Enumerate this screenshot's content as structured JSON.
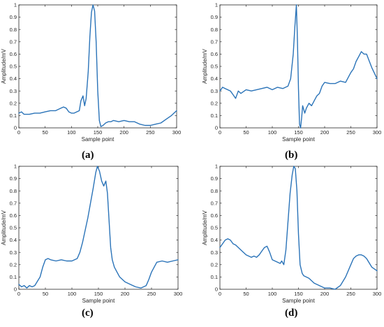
{
  "chart_data": [
    {
      "type": "line",
      "panel_label": "(a)",
      "xlabel": "Sample point",
      "ylabel": "Amplitude/mV",
      "xlim": [
        0,
        300
      ],
      "ylim": [
        0,
        1
      ],
      "xticks": [
        0,
        50,
        100,
        150,
        200,
        250,
        300
      ],
      "yticks": [
        0,
        0.1,
        0.2,
        0.3,
        0.4,
        0.5,
        0.6,
        0.7,
        0.8,
        0.9,
        1
      ],
      "grid": false,
      "line_color": "#2a73b8",
      "x": [
        0,
        5,
        10,
        20,
        30,
        40,
        50,
        60,
        70,
        80,
        85,
        90,
        95,
        100,
        105,
        110,
        115,
        118,
        122,
        125,
        128,
        132,
        135,
        138,
        141,
        144,
        147,
        150,
        153,
        156,
        160,
        165,
        170,
        175,
        180,
        190,
        200,
        210,
        220,
        230,
        240,
        250,
        260,
        270,
        280,
        290,
        295,
        300
      ],
      "y": [
        0.12,
        0.13,
        0.11,
        0.11,
        0.12,
        0.12,
        0.13,
        0.14,
        0.14,
        0.16,
        0.17,
        0.16,
        0.13,
        0.12,
        0.12,
        0.13,
        0.14,
        0.22,
        0.26,
        0.18,
        0.24,
        0.46,
        0.74,
        0.94,
        1.0,
        0.95,
        0.7,
        0.3,
        0.06,
        0.01,
        0.02,
        0.04,
        0.05,
        0.05,
        0.06,
        0.05,
        0.06,
        0.05,
        0.05,
        0.03,
        0.02,
        0.02,
        0.03,
        0.04,
        0.07,
        0.1,
        0.12,
        0.14
      ]
    },
    {
      "type": "line",
      "panel_label": "(b)",
      "xlabel": "Sample point",
      "ylabel": "Amplitude/mV",
      "xlim": [
        0,
        300
      ],
      "ylim": [
        0,
        1
      ],
      "xticks": [
        0,
        50,
        100,
        150,
        200,
        250,
        300
      ],
      "yticks": [
        0,
        0.1,
        0.2,
        0.3,
        0.4,
        0.5,
        0.6,
        0.7,
        0.8,
        0.9,
        1
      ],
      "grid": false,
      "line_color": "#2a73b8",
      "x": [
        0,
        5,
        10,
        20,
        25,
        30,
        35,
        40,
        50,
        60,
        70,
        80,
        90,
        100,
        110,
        120,
        130,
        135,
        140,
        143,
        146,
        148,
        150,
        152,
        154,
        156,
        158,
        162,
        165,
        170,
        175,
        180,
        185,
        190,
        195,
        200,
        210,
        220,
        230,
        240,
        250,
        255,
        260,
        265,
        270,
        275,
        280,
        290,
        300
      ],
      "y": [
        0.3,
        0.33,
        0.32,
        0.3,
        0.27,
        0.24,
        0.3,
        0.28,
        0.31,
        0.3,
        0.31,
        0.32,
        0.33,
        0.31,
        0.33,
        0.32,
        0.34,
        0.4,
        0.6,
        0.82,
        1.0,
        0.72,
        0.32,
        0.03,
        0.0,
        0.08,
        0.18,
        0.12,
        0.16,
        0.2,
        0.18,
        0.22,
        0.26,
        0.28,
        0.34,
        0.37,
        0.36,
        0.36,
        0.38,
        0.37,
        0.45,
        0.48,
        0.54,
        0.58,
        0.62,
        0.6,
        0.6,
        0.49,
        0.4
      ]
    },
    {
      "type": "line",
      "panel_label": "(c)",
      "xlabel": "Sample point",
      "ylabel": "Amplitude/mV",
      "xlim": [
        0,
        300
      ],
      "ylim": [
        0,
        1
      ],
      "xticks": [
        0,
        50,
        100,
        150,
        200,
        250,
        300
      ],
      "yticks": [
        0,
        0.1,
        0.2,
        0.3,
        0.4,
        0.5,
        0.6,
        0.7,
        0.8,
        0.9,
        1
      ],
      "grid": false,
      "line_color": "#2a73b8",
      "x": [
        0,
        5,
        10,
        15,
        20,
        25,
        30,
        40,
        45,
        50,
        55,
        60,
        70,
        80,
        90,
        100,
        110,
        115,
        120,
        125,
        130,
        135,
        140,
        145,
        148,
        152,
        156,
        160,
        164,
        167,
        170,
        173,
        176,
        180,
        185,
        190,
        195,
        200,
        210,
        220,
        230,
        240,
        245,
        250,
        260,
        270,
        280,
        290,
        300
      ],
      "y": [
        0.04,
        0.02,
        0.03,
        0.01,
        0.03,
        0.02,
        0.03,
        0.1,
        0.18,
        0.24,
        0.25,
        0.24,
        0.23,
        0.24,
        0.23,
        0.23,
        0.25,
        0.3,
        0.38,
        0.48,
        0.58,
        0.7,
        0.82,
        0.95,
        1.0,
        0.96,
        0.88,
        0.84,
        0.88,
        0.78,
        0.56,
        0.34,
        0.24,
        0.18,
        0.14,
        0.1,
        0.08,
        0.06,
        0.04,
        0.02,
        0.01,
        0.03,
        0.08,
        0.14,
        0.22,
        0.23,
        0.22,
        0.23,
        0.24
      ]
    },
    {
      "type": "line",
      "panel_label": "(d)",
      "xlabel": "Sample point",
      "ylabel": "Amplitude/mV",
      "xlim": [
        0,
        300
      ],
      "ylim": [
        0,
        1
      ],
      "xticks": [
        0,
        50,
        100,
        150,
        200,
        250,
        300
      ],
      "yticks": [
        0,
        0.1,
        0.2,
        0.3,
        0.4,
        0.5,
        0.6,
        0.7,
        0.8,
        0.9,
        1
      ],
      "grid": false,
      "line_color": "#2a73b8",
      "x": [
        0,
        5,
        10,
        15,
        20,
        25,
        30,
        40,
        50,
        60,
        65,
        70,
        75,
        80,
        85,
        90,
        95,
        100,
        110,
        115,
        118,
        122,
        126,
        130,
        134,
        138,
        141,
        144,
        147,
        150,
        153,
        157,
        160,
        170,
        180,
        190,
        200,
        210,
        220,
        230,
        240,
        250,
        255,
        260,
        265,
        270,
        275,
        280,
        290,
        300
      ],
      "y": [
        0.34,
        0.37,
        0.4,
        0.41,
        0.4,
        0.37,
        0.36,
        0.32,
        0.28,
        0.26,
        0.27,
        0.26,
        0.28,
        0.31,
        0.34,
        0.35,
        0.3,
        0.24,
        0.22,
        0.21,
        0.23,
        0.2,
        0.32,
        0.55,
        0.78,
        0.93,
        1.0,
        0.98,
        0.8,
        0.45,
        0.2,
        0.13,
        0.11,
        0.09,
        0.05,
        0.03,
        0.01,
        0.01,
        0.0,
        0.03,
        0.1,
        0.2,
        0.25,
        0.27,
        0.28,
        0.28,
        0.27,
        0.25,
        0.18,
        0.15
      ]
    }
  ]
}
